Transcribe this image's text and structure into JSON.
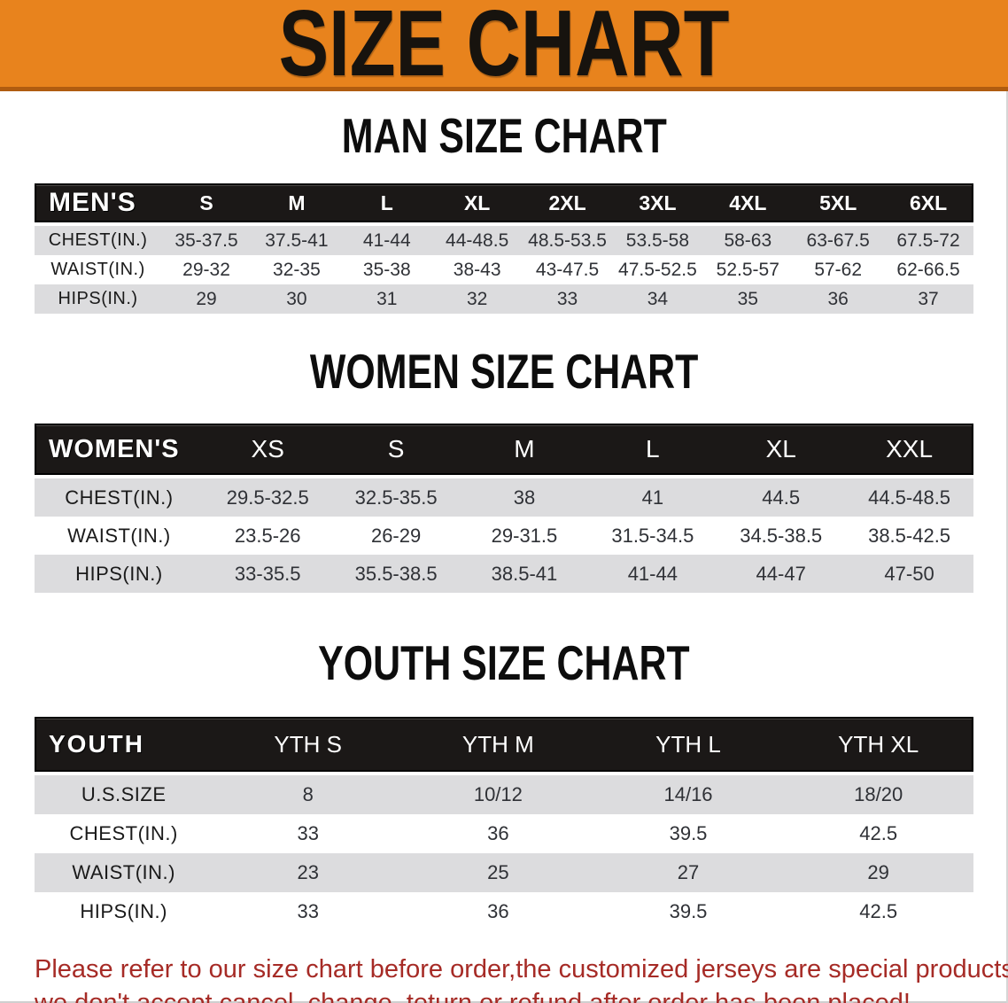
{
  "banner": {
    "title": "SIZE CHART",
    "background_color": "#e8831d",
    "edge_color": "#b05c10"
  },
  "sections": [
    {
      "heading": "MAN SIZE CHART",
      "table": {
        "corner": "MEN'S",
        "columns": [
          "S",
          "M",
          "L",
          "XL",
          "2XL",
          "3XL",
          "4XL",
          "5XL",
          "6XL"
        ],
        "rows": [
          {
            "label": "CHEST(IN.)",
            "values": [
              "35-37.5",
              "37.5-41",
              "41-44",
              "44-48.5",
              "48.5-53.5",
              "53.5-58",
              "58-63",
              "63-67.5",
              "67.5-72"
            ]
          },
          {
            "label": "WAIST(IN.)",
            "values": [
              "29-32",
              "32-35",
              "35-38",
              "38-43",
              "43-47.5",
              "47.5-52.5",
              "52.5-57",
              "57-62",
              "62-66.5"
            ]
          },
          {
            "label": "HIPS(IN.)",
            "values": [
              "29",
              "30",
              "31",
              "32",
              "33",
              "34",
              "35",
              "36",
              "37"
            ]
          }
        ]
      }
    },
    {
      "heading": "WOMEN SIZE CHART",
      "table": {
        "corner": "WOMEN'S",
        "columns": [
          "XS",
          "S",
          "M",
          "L",
          "XL",
          "XXL"
        ],
        "rows": [
          {
            "label": "CHEST(IN.)",
            "values": [
              "29.5-32.5",
              "32.5-35.5",
              "38",
              "41",
              "44.5",
              "44.5-48.5"
            ]
          },
          {
            "label": "WAIST(IN.)",
            "values": [
              "23.5-26",
              "26-29",
              "29-31.5",
              "31.5-34.5",
              "34.5-38.5",
              "38.5-42.5"
            ]
          },
          {
            "label": "HIPS(IN.)",
            "values": [
              "33-35.5",
              "35.5-38.5",
              "38.5-41",
              "41-44",
              "44-47",
              "47-50"
            ]
          }
        ]
      }
    },
    {
      "heading": "YOUTH SIZE CHART",
      "table": {
        "corner": "YOUTH",
        "columns": [
          "YTH S",
          "YTH M",
          "YTH L",
          "YTH XL"
        ],
        "rows": [
          {
            "label": "U.S.SIZE",
            "values": [
              "8",
              "10/12",
              "14/16",
              "18/20"
            ]
          },
          {
            "label": "CHEST(IN.)",
            "values": [
              "33",
              "36",
              "39.5",
              "42.5"
            ]
          },
          {
            "label": "WAIST(IN.)",
            "values": [
              "23",
              "25",
              "27",
              "29"
            ]
          },
          {
            "label": "HIPS(IN.)",
            "values": [
              "33",
              "36",
              "39.5",
              "42.5"
            ]
          }
        ]
      }
    }
  ],
  "footer": {
    "lines": [
      "Please refer to our size chart before order,the customized jerseys are special products,",
      "we don't accept cancel, change, teturn or refund after order has been placed!"
    ],
    "text_color": "#a62b26"
  },
  "colors": {
    "header_bar": "#1b1817",
    "row_stripe": "#dcdcde",
    "row_plain": "#ffffff"
  }
}
